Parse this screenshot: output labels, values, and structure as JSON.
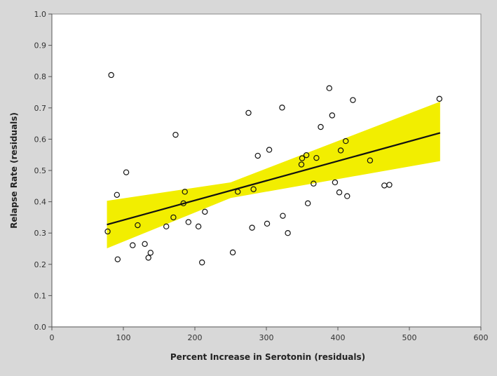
{
  "chart_data": {
    "type": "scatter",
    "xlabel": "Percent Increase in Serotonin (residuals)",
    "ylabel": "Relapse Rate (residuals)",
    "xlim": [
      0,
      600
    ],
    "ylim": [
      0,
      1.0
    ],
    "x_ticks": [
      "0",
      "100",
      "200",
      "300",
      "400",
      "500",
      "600"
    ],
    "y_ticks": [
      "0.0",
      "0.1",
      "0.2",
      "0.3",
      "0.4",
      "0.5",
      "0.6",
      "0.7",
      "0.8",
      "0.9",
      "1.0"
    ],
    "x_tick_values": [
      0,
      100,
      200,
      300,
      400,
      500,
      600
    ],
    "y_tick_values": [
      0.0,
      0.1,
      0.2,
      0.3,
      0.4,
      0.5,
      0.6,
      0.7,
      0.8,
      0.9,
      1.0
    ],
    "grid": false,
    "background_color": "#d8d8d8",
    "plot_background_color": "#ffffff",
    "band_color": "#f2ee00",
    "line_color": "#111111",
    "point_style": "open-circle",
    "points": [
      {
        "x": 78,
        "y": 0.305
      },
      {
        "x": 83,
        "y": 0.805
      },
      {
        "x": 91,
        "y": 0.422
      },
      {
        "x": 92,
        "y": 0.216
      },
      {
        "x": 104,
        "y": 0.494
      },
      {
        "x": 113,
        "y": 0.261
      },
      {
        "x": 120,
        "y": 0.325
      },
      {
        "x": 130,
        "y": 0.265
      },
      {
        "x": 135,
        "y": 0.221
      },
      {
        "x": 138,
        "y": 0.237
      },
      {
        "x": 160,
        "y": 0.321
      },
      {
        "x": 170,
        "y": 0.35
      },
      {
        "x": 173,
        "y": 0.614
      },
      {
        "x": 184,
        "y": 0.395
      },
      {
        "x": 186,
        "y": 0.432
      },
      {
        "x": 191,
        "y": 0.335
      },
      {
        "x": 205,
        "y": 0.321
      },
      {
        "x": 210,
        "y": 0.206
      },
      {
        "x": 214,
        "y": 0.368
      },
      {
        "x": 253,
        "y": 0.238
      },
      {
        "x": 260,
        "y": 0.432
      },
      {
        "x": 275,
        "y": 0.684
      },
      {
        "x": 280,
        "y": 0.317
      },
      {
        "x": 282,
        "y": 0.44
      },
      {
        "x": 288,
        "y": 0.547
      },
      {
        "x": 301,
        "y": 0.33
      },
      {
        "x": 304,
        "y": 0.566
      },
      {
        "x": 322,
        "y": 0.701
      },
      {
        "x": 323,
        "y": 0.355
      },
      {
        "x": 330,
        "y": 0.3
      },
      {
        "x": 349,
        "y": 0.519
      },
      {
        "x": 350,
        "y": 0.539
      },
      {
        "x": 356,
        "y": 0.549
      },
      {
        "x": 358,
        "y": 0.395
      },
      {
        "x": 366,
        "y": 0.458
      },
      {
        "x": 370,
        "y": 0.54
      },
      {
        "x": 376,
        "y": 0.639
      },
      {
        "x": 388,
        "y": 0.763
      },
      {
        "x": 392,
        "y": 0.676
      },
      {
        "x": 396,
        "y": 0.462
      },
      {
        "x": 402,
        "y": 0.43
      },
      {
        "x": 404,
        "y": 0.564
      },
      {
        "x": 411,
        "y": 0.594
      },
      {
        "x": 413,
        "y": 0.418
      },
      {
        "x": 421,
        "y": 0.725
      },
      {
        "x": 445,
        "y": 0.532
      },
      {
        "x": 465,
        "y": 0.452
      },
      {
        "x": 472,
        "y": 0.454
      },
      {
        "x": 542,
        "y": 0.729
      }
    ],
    "trend_line": {
      "x": [
        77,
        543
      ],
      "y": [
        0.327,
        0.62
      ]
    },
    "confidence_band": {
      "x": [
        77,
        250,
        543
      ],
      "upper": [
        0.403,
        0.462,
        0.72
      ],
      "lower": [
        0.251,
        0.412,
        0.53
      ]
    }
  }
}
